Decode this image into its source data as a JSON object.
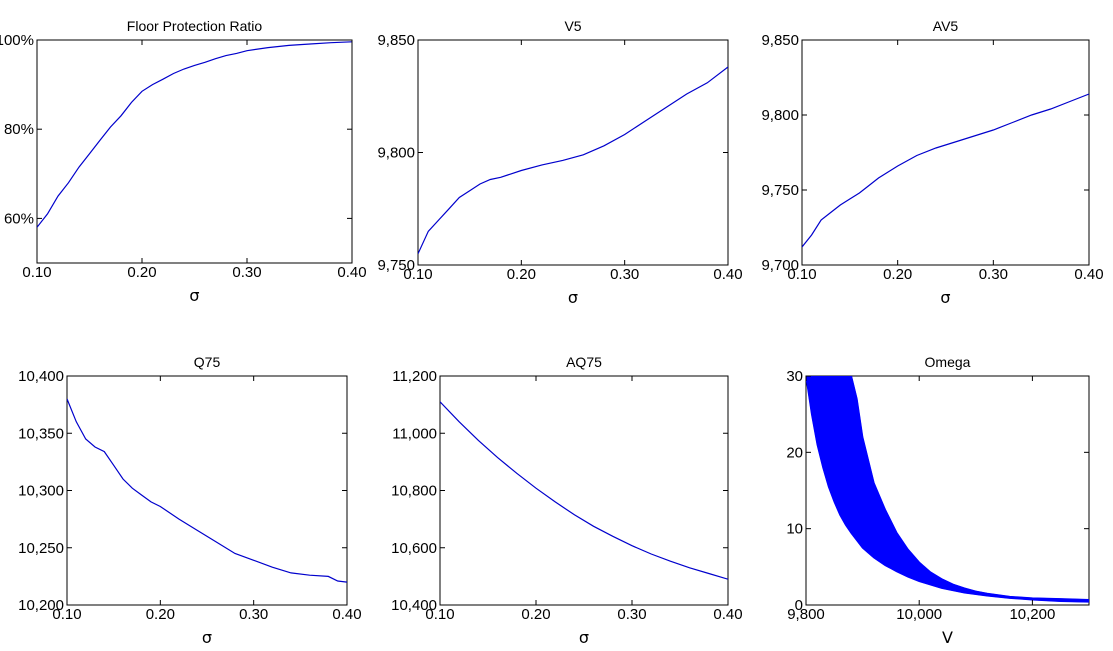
{
  "chart_data": [
    {
      "type": "line",
      "title": "Floor Protection Ratio",
      "xlabel": "σ",
      "ylabel": "",
      "xlim": [
        0.1,
        0.4
      ],
      "ylim": [
        50,
        100
      ],
      "xticks": [
        0.1,
        0.2,
        0.3,
        0.4
      ],
      "xtick_labels": [
        "0.10",
        "0.20",
        "0.30",
        "0.40"
      ],
      "yticks": [
        60,
        80,
        100
      ],
      "ytick_labels": [
        "60%",
        "80%",
        "100%"
      ],
      "color": "#0000cc",
      "series": [
        {
          "x": [
            0.1,
            0.11,
            0.12,
            0.13,
            0.14,
            0.15,
            0.16,
            0.17,
            0.18,
            0.19,
            0.2,
            0.21,
            0.22,
            0.23,
            0.24,
            0.25,
            0.26,
            0.27,
            0.28,
            0.29,
            0.3,
            0.32,
            0.34,
            0.36,
            0.38,
            0.4
          ],
          "y": [
            58,
            61,
            65,
            68,
            71.5,
            74.5,
            77.5,
            80.5,
            83,
            86,
            88.5,
            90,
            91.2,
            92.5,
            93.5,
            94.3,
            95,
            95.8,
            96.5,
            97,
            97.6,
            98.3,
            98.8,
            99.1,
            99.4,
            99.6
          ]
        }
      ]
    },
    {
      "type": "line",
      "title": "V5",
      "xlabel": "σ",
      "ylabel": "",
      "xlim": [
        0.1,
        0.4
      ],
      "ylim": [
        9750,
        9850
      ],
      "xticks": [
        0.1,
        0.2,
        0.3,
        0.4
      ],
      "xtick_labels": [
        "0.10",
        "0.20",
        "0.30",
        "0.40"
      ],
      "yticks": [
        9750,
        9800,
        9850
      ],
      "ytick_labels": [
        "9,750",
        "9,800",
        "9,850"
      ],
      "color": "#0000cc",
      "series": [
        {
          "x": [
            0.1,
            0.11,
            0.12,
            0.13,
            0.14,
            0.15,
            0.16,
            0.17,
            0.18,
            0.19,
            0.2,
            0.22,
            0.24,
            0.26,
            0.28,
            0.3,
            0.32,
            0.34,
            0.36,
            0.38,
            0.4
          ],
          "y": [
            9755,
            9765,
            9770,
            9775,
            9780,
            9783,
            9786,
            9788,
            9789,
            9790.5,
            9792,
            9794.5,
            9796.5,
            9799,
            9803,
            9808,
            9814,
            9820,
            9826,
            9831,
            9838
          ]
        }
      ]
    },
    {
      "type": "line",
      "title": "AV5",
      "xlabel": "σ",
      "ylabel": "",
      "xlim": [
        0.1,
        0.4
      ],
      "ylim": [
        9700,
        9850
      ],
      "xticks": [
        0.1,
        0.2,
        0.3,
        0.4
      ],
      "xtick_labels": [
        "0.10",
        "0.20",
        "0.30",
        "0.40"
      ],
      "yticks": [
        9700,
        9750,
        9800,
        9850
      ],
      "ytick_labels": [
        "9,700",
        "9,750",
        "9,800",
        "9,850"
      ],
      "color": "#0000cc",
      "series": [
        {
          "x": [
            0.1,
            0.11,
            0.12,
            0.13,
            0.14,
            0.15,
            0.16,
            0.17,
            0.18,
            0.19,
            0.2,
            0.22,
            0.24,
            0.26,
            0.28,
            0.3,
            0.32,
            0.34,
            0.36,
            0.38,
            0.4
          ],
          "y": [
            9712,
            9720,
            9730,
            9735,
            9740,
            9744,
            9748,
            9753,
            9758,
            9762,
            9766,
            9773,
            9778,
            9782,
            9786,
            9790,
            9795,
            9800,
            9804,
            9809,
            9814
          ]
        }
      ]
    },
    {
      "type": "line",
      "title": "Q75",
      "xlabel": "σ",
      "ylabel": "",
      "xlim": [
        0.1,
        0.4
      ],
      "ylim": [
        10200,
        10400
      ],
      "xticks": [
        0.1,
        0.2,
        0.3,
        0.4
      ],
      "xtick_labels": [
        "0.10",
        "0.20",
        "0.30",
        "0.40"
      ],
      "yticks": [
        10200,
        10250,
        10300,
        10350,
        10400
      ],
      "ytick_labels": [
        "10,200",
        "10,250",
        "10,300",
        "10,350",
        "10,400"
      ],
      "color": "#0000cc",
      "series": [
        {
          "x": [
            0.1,
            0.11,
            0.12,
            0.13,
            0.14,
            0.15,
            0.16,
            0.17,
            0.18,
            0.19,
            0.2,
            0.22,
            0.24,
            0.26,
            0.28,
            0.3,
            0.32,
            0.34,
            0.36,
            0.38,
            0.39,
            0.4
          ],
          "y": [
            10380,
            10360,
            10345,
            10338,
            10334,
            10322,
            10310,
            10302,
            10296,
            10290,
            10286,
            10275,
            10265,
            10255,
            10245,
            10239,
            10233,
            10228,
            10226,
            10225,
            10221,
            10220
          ]
        }
      ]
    },
    {
      "type": "line",
      "title": "AQ75",
      "xlabel": "σ",
      "ylabel": "",
      "xlim": [
        0.1,
        0.4
      ],
      "ylim": [
        10400,
        11200
      ],
      "xticks": [
        0.1,
        0.2,
        0.3,
        0.4
      ],
      "xtick_labels": [
        "0.10",
        "0.20",
        "0.30",
        "0.40"
      ],
      "yticks": [
        10400,
        10600,
        10800,
        11000,
        11200
      ],
      "ytick_labels": [
        "10,400",
        "10,600",
        "10,800",
        "11,000",
        "11,200"
      ],
      "color": "#0000cc",
      "series": [
        {
          "x": [
            0.1,
            0.12,
            0.14,
            0.16,
            0.18,
            0.2,
            0.22,
            0.24,
            0.26,
            0.28,
            0.3,
            0.32,
            0.34,
            0.36,
            0.38,
            0.4
          ],
          "y": [
            11110,
            11040,
            10975,
            10915,
            10860,
            10808,
            10760,
            10715,
            10675,
            10640,
            10607,
            10578,
            10553,
            10530,
            10510,
            10490
          ]
        }
      ]
    },
    {
      "type": "area",
      "title": "Omega",
      "xlabel": "V",
      "ylabel": "",
      "xlim": [
        9800,
        10300
      ],
      "ylim": [
        0,
        30
      ],
      "xticks": [
        9800,
        10000,
        10200
      ],
      "xtick_labels": [
        "9,800",
        "10,000",
        "10,200"
      ],
      "yticks": [
        0,
        10,
        20,
        30
      ],
      "ytick_labels": [
        "0",
        "10",
        "20",
        "30"
      ],
      "color": "#0000ff",
      "series": [
        {
          "name": "lower",
          "x": [
            9800,
            9810,
            9820,
            9830,
            9840,
            9850,
            9860,
            9870,
            9880,
            9900,
            9920,
            9940,
            9960,
            9980,
            10000,
            10040,
            10080,
            10120,
            10160,
            10200,
            10250,
            10300
          ],
          "y": [
            30,
            25,
            21,
            18,
            15.5,
            13.5,
            11.8,
            10.5,
            9.4,
            7.5,
            6.2,
            5.2,
            4.4,
            3.7,
            3.1,
            2.2,
            1.6,
            1.2,
            0.9,
            0.7,
            0.5,
            0.4
          ]
        },
        {
          "name": "upper",
          "x": [
            9800,
            9820,
            9840,
            9860,
            9880,
            9890,
            9900,
            9920,
            9940,
            9960,
            9980,
            10000,
            10020,
            10040,
            10060,
            10080,
            10100,
            10120,
            10160,
            10200,
            10250,
            10300
          ],
          "y": [
            30,
            30,
            30,
            30,
            30,
            27,
            22,
            16,
            12.5,
            9.5,
            7.3,
            5.6,
            4.3,
            3.4,
            2.7,
            2.2,
            1.8,
            1.5,
            1.1,
            0.9,
            0.8,
            0.7
          ]
        }
      ]
    }
  ]
}
